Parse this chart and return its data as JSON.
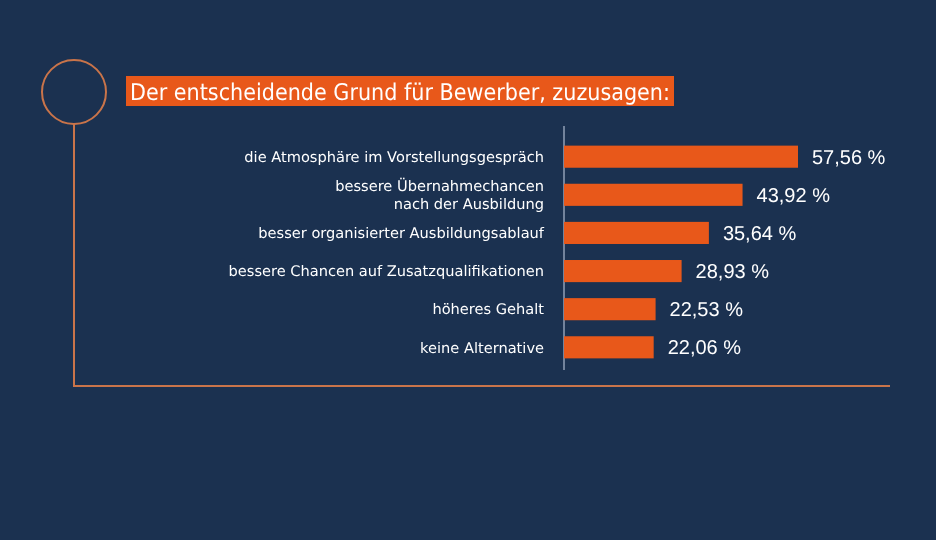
{
  "chart_data": {
    "type": "bar",
    "orientation": "horizontal",
    "title": "Der entscheidende Grund für Bewerber, zuzusagen:",
    "categories": [
      "die Atmosphäre im Vorstellungsgespräch",
      "bessere Übernahmechancen\nnach der Ausbildung",
      "besser organisierter Ausbildungsablauf",
      "bessere Chancen auf Zusatzqualifikationen",
      "höheres Gehalt",
      "keine Alternative"
    ],
    "values": [
      57.56,
      43.92,
      35.64,
      28.93,
      22.53,
      22.06
    ],
    "value_labels": [
      "57,56 %",
      "43,92 %",
      "35,64 %",
      "28,93 %",
      "22,53 %",
      "22,06 %"
    ],
    "color": "#e8581a"
  }
}
